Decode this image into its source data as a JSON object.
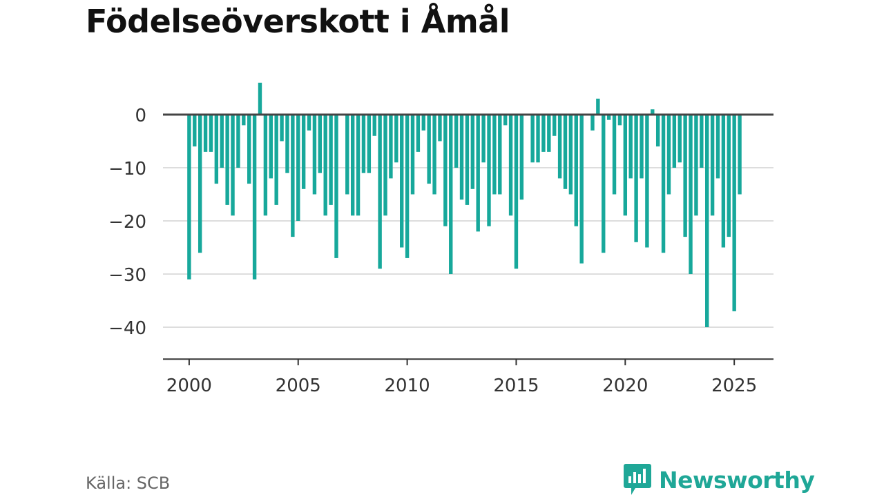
{
  "title": "Födelseöverskott i Åmål",
  "source": "Källa: SCB",
  "brand": {
    "name": "Newsworthy",
    "icon": "newsworthy-logo-icon"
  },
  "colors": {
    "bar": "#17a89b",
    "grid": "#dddddd",
    "zero_line": "#444444",
    "axis": "#333333",
    "brand": "#1fa797"
  },
  "chart_data": {
    "type": "bar",
    "frequency": "quarterly",
    "x_start": 2000.0,
    "x_step": 0.25,
    "xlim": [
      1998.8,
      2026.8
    ],
    "xticks": [
      2000,
      2005,
      2010,
      2015,
      2020,
      2025
    ],
    "ylim": [
      -46,
      6
    ],
    "yticks": [
      0,
      -10,
      -20,
      -30,
      -40
    ],
    "ytick_labels": [
      "0",
      "−10",
      "−20",
      "−30",
      "−40"
    ],
    "grid": true,
    "values": [
      -31,
      -6,
      -26,
      -7,
      -7,
      -13,
      -10,
      -17,
      -19,
      -10,
      -2,
      -13,
      -31,
      6,
      -19,
      -12,
      -17,
      -5,
      -11,
      -23,
      -20,
      -14,
      -3,
      -15,
      -11,
      -19,
      -17,
      -27,
      0,
      -15,
      -19,
      -19,
      -11,
      -11,
      -4,
      -29,
      -19,
      -12,
      -9,
      -25,
      -27,
      -15,
      -7,
      -3,
      -13,
      -15,
      -5,
      -21,
      -30,
      -10,
      -16,
      -17,
      -14,
      -22,
      -9,
      -21,
      -15,
      -15,
      -2,
      -19,
      -29,
      -16,
      0,
      -9,
      -9,
      -7,
      -7,
      -4,
      -12,
      -14,
      -15,
      -21,
      -28,
      0,
      -3,
      3,
      -26,
      -1,
      -15,
      -2,
      -19,
      -12,
      -24,
      -12,
      -25,
      1,
      -6,
      -26,
      -15,
      -10,
      -9,
      -23,
      -30,
      -19,
      -10,
      -40,
      -19,
      -12,
      -25,
      -23,
      -37,
      -15
    ]
  }
}
